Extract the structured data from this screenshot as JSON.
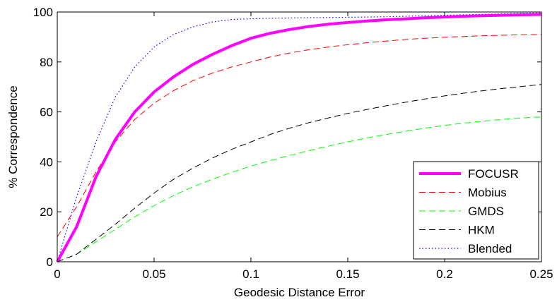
{
  "chart_data": {
    "type": "line",
    "title": "",
    "xlabel": "Geodesic Distance Error",
    "ylabel": "% Correspondence",
    "xlim": [
      0,
      0.25
    ],
    "ylim": [
      0,
      100
    ],
    "x_ticks": [
      0,
      0.05,
      0.1,
      0.15,
      0.2,
      0.25
    ],
    "x_tick_labels": [
      "0",
      "0.05",
      "0.1",
      "0.15",
      "0.2",
      "0.25"
    ],
    "y_ticks": [
      0,
      20,
      40,
      60,
      80,
      100
    ],
    "y_tick_labels": [
      "0",
      "20",
      "40",
      "60",
      "80",
      "100"
    ],
    "grid": false,
    "legend_position": "bottom-right",
    "series": [
      {
        "name": "FOCUSR",
        "color": "#ff00ff",
        "style": "solid",
        "x": [
          0,
          0.01,
          0.02,
          0.03,
          0.04,
          0.05,
          0.06,
          0.07,
          0.08,
          0.09,
          0.1,
          0.11,
          0.12,
          0.13,
          0.14,
          0.15,
          0.16,
          0.17,
          0.18,
          0.19,
          0.2,
          0.21,
          0.22,
          0.23,
          0.24,
          0.25
        ],
        "y": [
          0,
          14,
          34,
          49,
          60,
          68,
          74,
          79,
          83,
          86.5,
          89.5,
          91.5,
          93,
          94.2,
          95.1,
          95.8,
          96.4,
          96.9,
          97.3,
          97.7,
          98,
          98.3,
          98.5,
          98.7,
          98.9,
          99
        ]
      },
      {
        "name": "Mobius",
        "color": "#ff0000",
        "style": "dashed",
        "x": [
          0,
          0.01,
          0.02,
          0.03,
          0.04,
          0.05,
          0.06,
          0.07,
          0.08,
          0.09,
          0.1,
          0.11,
          0.12,
          0.13,
          0.14,
          0.15,
          0.16,
          0.17,
          0.18,
          0.19,
          0.2,
          0.21,
          0.22,
          0.23,
          0.24,
          0.25
        ],
        "y": [
          10,
          22,
          36,
          48,
          57,
          63.5,
          68.5,
          72.5,
          75.5,
          78,
          80,
          82,
          83.6,
          84.9,
          86,
          86.9,
          87.7,
          88.4,
          89,
          89.5,
          89.9,
          90.2,
          90.5,
          90.7,
          90.9,
          91
        ]
      },
      {
        "name": "GMDS",
        "color": "#00ff00",
        "style": "dashed",
        "x": [
          0,
          0.01,
          0.02,
          0.03,
          0.04,
          0.05,
          0.06,
          0.07,
          0.08,
          0.09,
          0.1,
          0.11,
          0.12,
          0.13,
          0.14,
          0.15,
          0.16,
          0.17,
          0.18,
          0.19,
          0.2,
          0.21,
          0.22,
          0.23,
          0.24,
          0.25
        ],
        "y": [
          0,
          3,
          8,
          13,
          18,
          22.5,
          26.5,
          30,
          33,
          35.8,
          38.3,
          40.5,
          42.6,
          44.5,
          46.3,
          48,
          49.6,
          51,
          52.3,
          53.5,
          54.6,
          55.5,
          56.3,
          57,
          57.6,
          58
        ]
      },
      {
        "name": "HKM",
        "color": "#000000",
        "style": "dashed",
        "x": [
          0,
          0.01,
          0.02,
          0.03,
          0.04,
          0.05,
          0.06,
          0.07,
          0.08,
          0.09,
          0.1,
          0.11,
          0.12,
          0.13,
          0.14,
          0.15,
          0.16,
          0.17,
          0.18,
          0.19,
          0.2,
          0.21,
          0.22,
          0.23,
          0.24,
          0.25
        ],
        "y": [
          0,
          3,
          9,
          15,
          21.5,
          27.5,
          33,
          37.5,
          41.5,
          45,
          48,
          51,
          53.5,
          55.7,
          57.6,
          59.4,
          61,
          62.5,
          63.9,
          65.2,
          66.4,
          67.5,
          68.5,
          69.4,
          70.2,
          71
        ]
      },
      {
        "name": "Blended",
        "color": "#0000ff",
        "style": "dotted",
        "x": [
          0,
          0.01,
          0.02,
          0.03,
          0.04,
          0.05,
          0.06,
          0.07,
          0.08,
          0.09,
          0.1,
          0.11,
          0.12,
          0.13,
          0.14,
          0.15,
          0.16,
          0.17,
          0.18,
          0.19,
          0.2,
          0.21,
          0.22,
          0.23,
          0.24,
          0.25
        ],
        "y": [
          0,
          26,
          48,
          66,
          78,
          86,
          91,
          94,
          96,
          97,
          97.3,
          97.5,
          97.6,
          97.7,
          97.8,
          97.9,
          98,
          98.1,
          98.3,
          98.5,
          98.7,
          98.9,
          99.1,
          99.3,
          99.5,
          99.6
        ]
      }
    ]
  }
}
